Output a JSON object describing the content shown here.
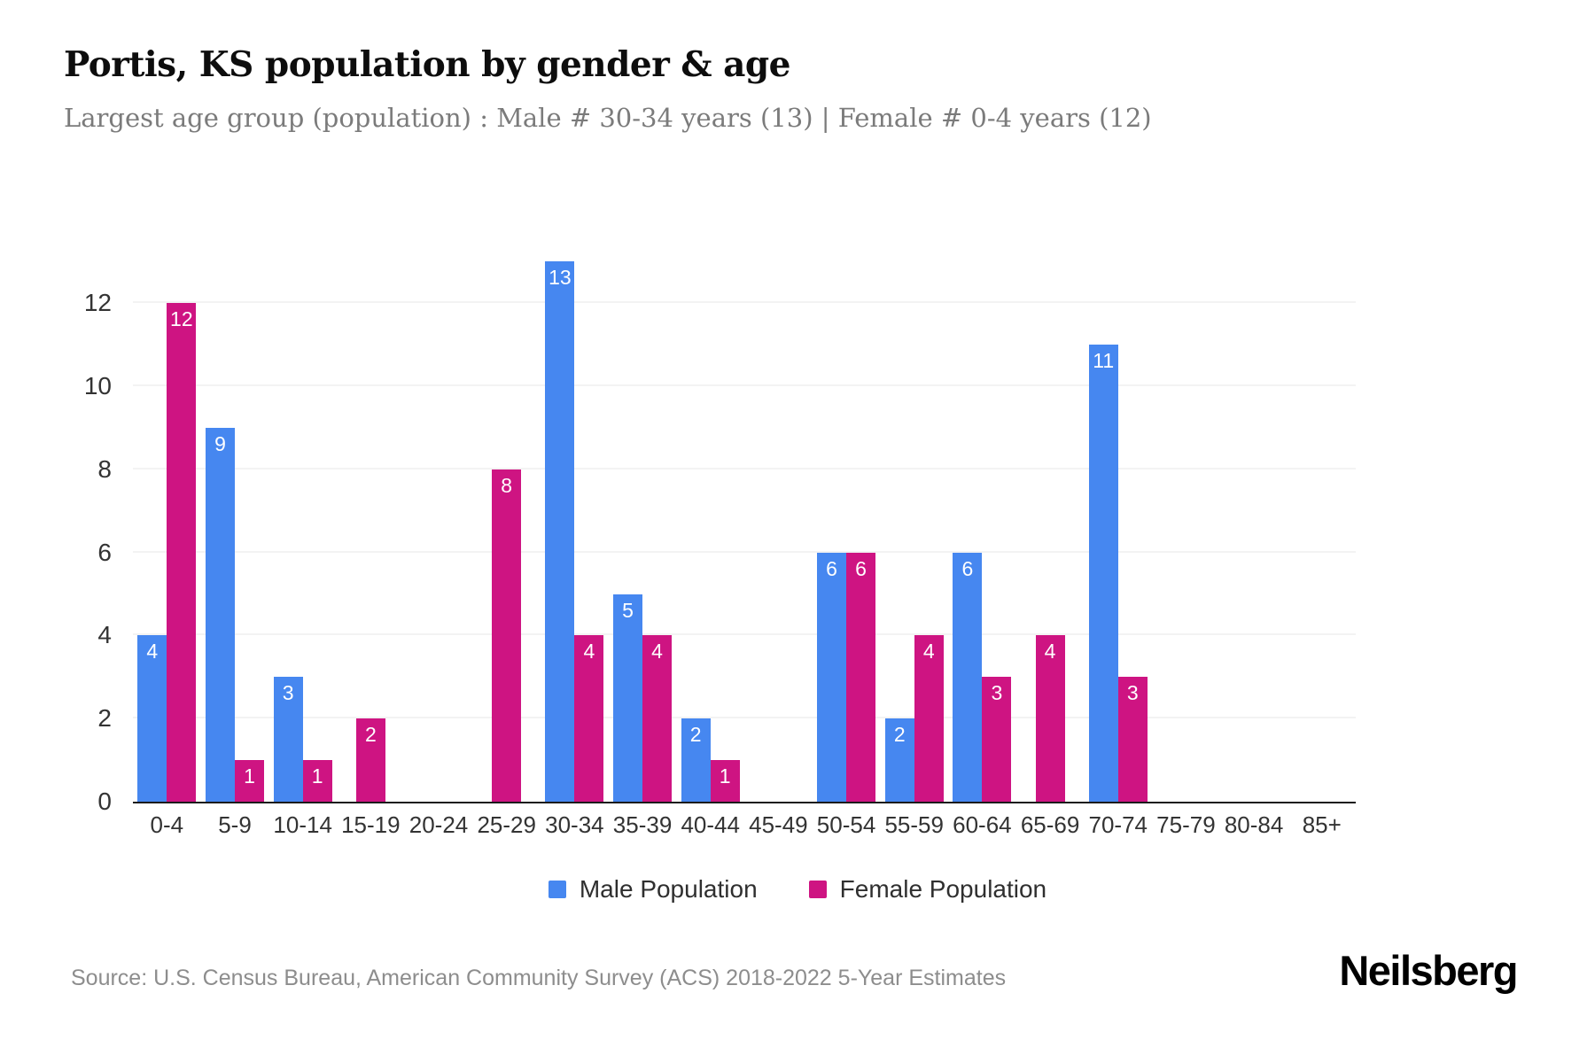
{
  "title": "Portis, KS population by gender & age",
  "subtitle": "Largest age group (population) : Male # 30-34 years (13) | Female # 0-4 years (12)",
  "source": "Source: U.S. Census Bureau, American Community Survey (ACS) 2018-2022 5-Year Estimates",
  "brand": "Neilsberg",
  "colors": {
    "male": "#4687f0",
    "female": "#ce1482",
    "grid": "#f3f3f3",
    "axis": "#1b1b1b",
    "tick_text": "#333333",
    "subtitle_text": "#7b7b7b",
    "source_text": "#8d8d8d"
  },
  "legend": [
    {
      "label": "Male Population",
      "color": "#4687f0"
    },
    {
      "label": "Female Population",
      "color": "#ce1482"
    }
  ],
  "chart_data": {
    "type": "bar",
    "title": "Portis, KS population by gender & age",
    "categories": [
      "0-4",
      "5-9",
      "10-14",
      "15-19",
      "20-24",
      "25-29",
      "30-34",
      "35-39",
      "40-44",
      "45-49",
      "50-54",
      "55-59",
      "60-64",
      "65-69",
      "70-74",
      "75-79",
      "80-84",
      "85+"
    ],
    "series": [
      {
        "name": "Male Population",
        "color": "#4687f0",
        "values": [
          4,
          9,
          3,
          0,
          0,
          0,
          13,
          5,
          2,
          0,
          6,
          2,
          6,
          0,
          11,
          0,
          0,
          0
        ]
      },
      {
        "name": "Female Population",
        "color": "#ce1482",
        "values": [
          12,
          1,
          1,
          2,
          0,
          8,
          4,
          4,
          1,
          0,
          6,
          4,
          3,
          4,
          3,
          0,
          0,
          0
        ]
      }
    ],
    "xlabel": "",
    "ylabel": "",
    "ylim": [
      0,
      13.5
    ],
    "yticks": [
      0,
      2,
      4,
      6,
      8,
      10,
      12
    ],
    "grid": true,
    "bar_value_labels": "inside-top-white",
    "legend_position": "bottom"
  }
}
